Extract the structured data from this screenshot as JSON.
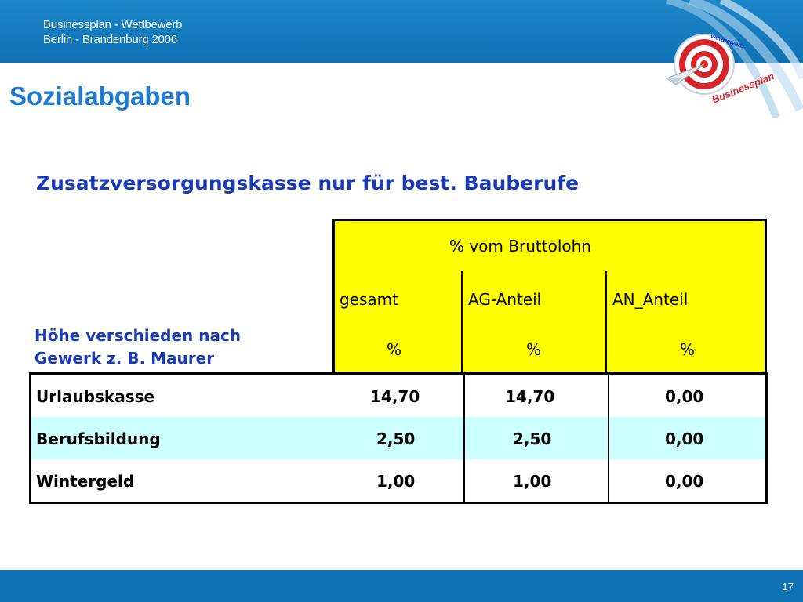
{
  "header": {
    "line1": "Businessplan - Wettbewerb",
    "line2": "Berlin - Brandenburg 2006"
  },
  "logo": {
    "top_text": "wettbewerb",
    "bottom_text": "Businessplan"
  },
  "title": "Sozialabgaben",
  "subtitle": "Zusatzversorgungskasse nur für best. Bauberufe",
  "note": {
    "line1": "Höhe verschieden nach",
    "line2": "Gewerk z. B. Maurer"
  },
  "table": {
    "group_header": "% vom Bruttolohn",
    "columns": [
      "gesamt",
      "AG-Anteil",
      "AN_Anteil"
    ],
    "units": [
      "%",
      "%",
      "%"
    ],
    "rows": [
      {
        "label": "Urlaubskasse",
        "values": [
          "14,70",
          "14,70",
          "0,00"
        ]
      },
      {
        "label": "Berufsbildung",
        "values": [
          "2,50",
          "2,50",
          "0,00"
        ]
      },
      {
        "label": "Wintergeld",
        "values": [
          "1,00",
          "1,00",
          "0,00"
        ]
      }
    ]
  },
  "footer": {
    "page_number": "17"
  },
  "colors": {
    "header_blue": "#1b86c8",
    "title_blue": "#1f7ad1",
    "subtitle_blue": "#1a3ab8",
    "table_yellow": "#ffff00",
    "row_alt": "#ccffff"
  }
}
